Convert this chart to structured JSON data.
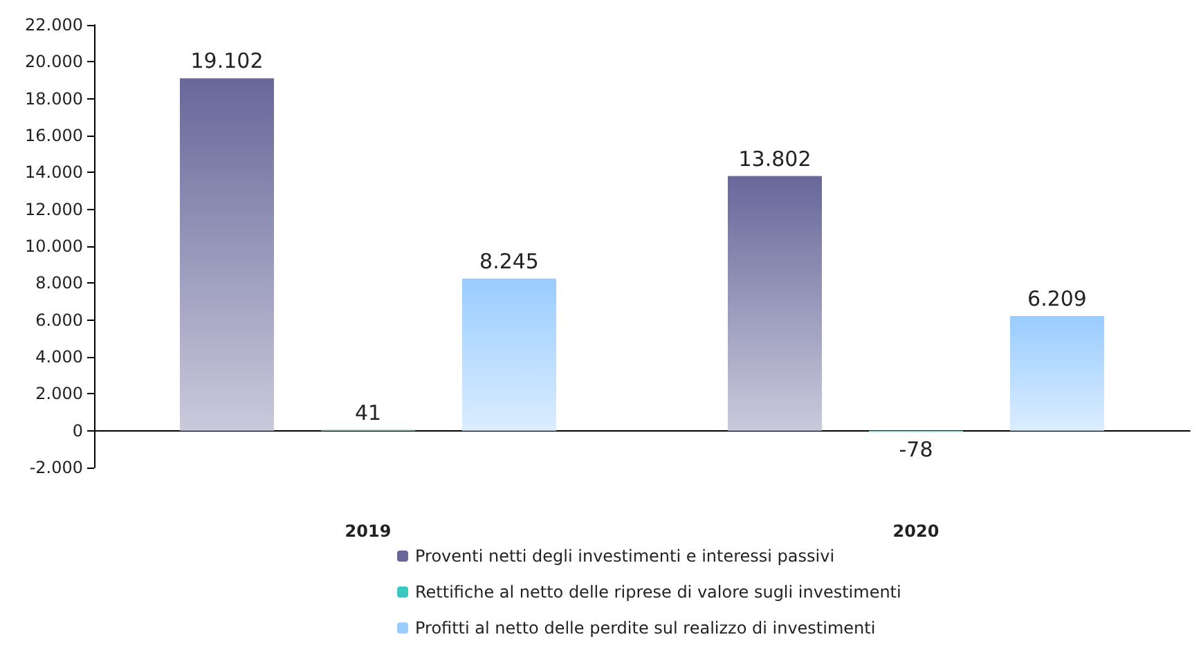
{
  "chart_data": {
    "type": "bar",
    "categories": [
      "2019",
      "2020"
    ],
    "series": [
      {
        "name": "Proventi netti degli investimenti e interessi passivi",
        "color": "#67679a",
        "values": [
          19102,
          13802
        ],
        "value_labels": [
          "19.102",
          "13.802"
        ]
      },
      {
        "name": "Rettifiche al netto delle riprese di valore sugli investimenti",
        "color": "#3cc8c0",
        "values": [
          41,
          -78
        ],
        "value_labels": [
          "41",
          "-78"
        ]
      },
      {
        "name": "Profitti al netto delle perdite sul realizzo di investimenti",
        "color": "#99ccff",
        "values": [
          8245,
          6209
        ],
        "value_labels": [
          "8.245",
          "6.209"
        ]
      }
    ],
    "ylim": [
      -2000,
      22000
    ],
    "yticks": [
      {
        "value": -2000,
        "label": "-2.000"
      },
      {
        "value": 0,
        "label": "0"
      },
      {
        "value": 2000,
        "label": "2.000"
      },
      {
        "value": 4000,
        "label": "4.000"
      },
      {
        "value": 6000,
        "label": "6.000"
      },
      {
        "value": 8000,
        "label": "8.000"
      },
      {
        "value": 10000,
        "label": "10.000"
      },
      {
        "value": 12000,
        "label": "12.000"
      },
      {
        "value": 14000,
        "label": "14.000"
      },
      {
        "value": 16000,
        "label": "16.000"
      },
      {
        "value": 18000,
        "label": "18.000"
      },
      {
        "value": 20000,
        "label": "20.000"
      },
      {
        "value": 22000,
        "label": "22.000"
      }
    ],
    "legend": "bottom"
  }
}
